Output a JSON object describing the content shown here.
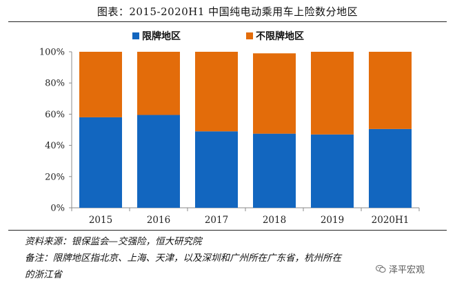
{
  "title": "图表：2015-2020H1 中国纯电动乘用车上险数分地区",
  "chart_data": {
    "type": "bar",
    "stacked": true,
    "categories": [
      "2015",
      "2016",
      "2017",
      "2018",
      "2019",
      "2020H1"
    ],
    "series": [
      {
        "name": "限牌地区",
        "color": "#1266bf",
        "values": [
          58,
          59.5,
          49,
          47.5,
          47,
          50.5
        ]
      },
      {
        "name": "不限牌地区",
        "color": "#e36c0a",
        "values": [
          42,
          40.5,
          51,
          51.5,
          53,
          49.5
        ]
      }
    ],
    "yticks": [
      "0%",
      "20%",
      "40%",
      "60%",
      "80%",
      "100%"
    ],
    "ylim": [
      0,
      100
    ],
    "legend_position": "top",
    "grid": false
  },
  "notes": {
    "source": "资料来源：银保监会—交强险，恒大研究院",
    "remark_line1": "备注：限牌地区指北京、上海、天津，以及深圳和广州所在广东省，杭州所在",
    "remark_line2": "的浙江省"
  },
  "watermark": {
    "text": "泽平宏观",
    "icon": "wechat-icon"
  }
}
